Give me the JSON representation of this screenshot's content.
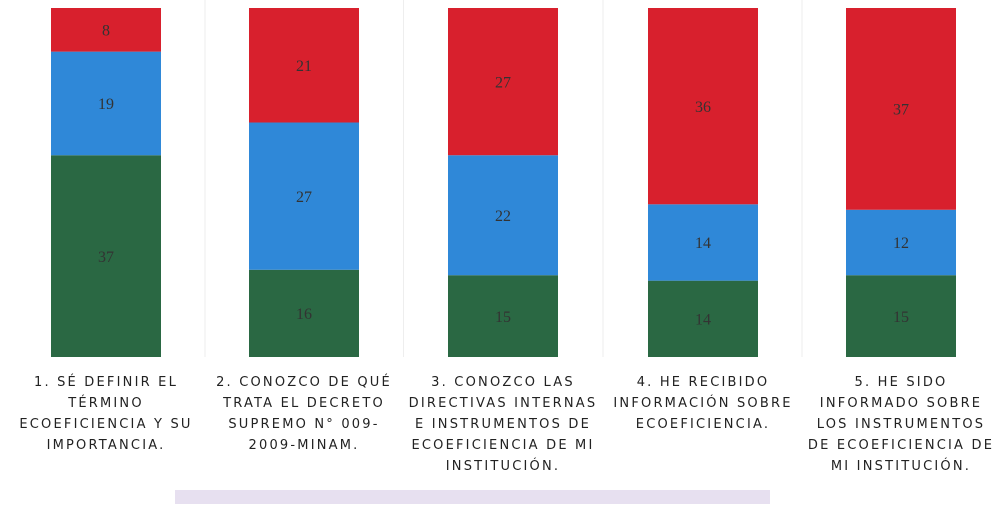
{
  "chart_data": {
    "type": "stacked_bar",
    "categories": [
      "1. SÉ DEFINIR EL TÉRMINO ECOEFICIENCIA Y SU IMPORTANCIA.",
      "2. CONOZCO DE QUÉ TRATA EL DECRETO SUPREMO N° 009-2009-MINAM.",
      "3. CONOZCO LAS DIRECTIVAS INTERNAS E INSTRUMENTOS DE ECOEFICIENCIA DE MI INSTITUCIÓN.",
      "4. HE RECIBIDO INFORMACIÓN SOBRE ECOEFICIENCIA.",
      "5. HE SIDO INFORMADO SOBRE LOS INSTRUMENTOS DE ECOEFICIENCIA DE MI INSTITUCIÓN."
    ],
    "series": [
      {
        "color": "#2a6843",
        "values": [
          37,
          16,
          15,
          14,
          15
        ]
      },
      {
        "color": "#2f88d8",
        "values": [
          19,
          27,
          22,
          14,
          12
        ]
      },
      {
        "color": "#d8202d",
        "values": [
          8,
          21,
          27,
          36,
          37
        ]
      }
    ]
  }
}
